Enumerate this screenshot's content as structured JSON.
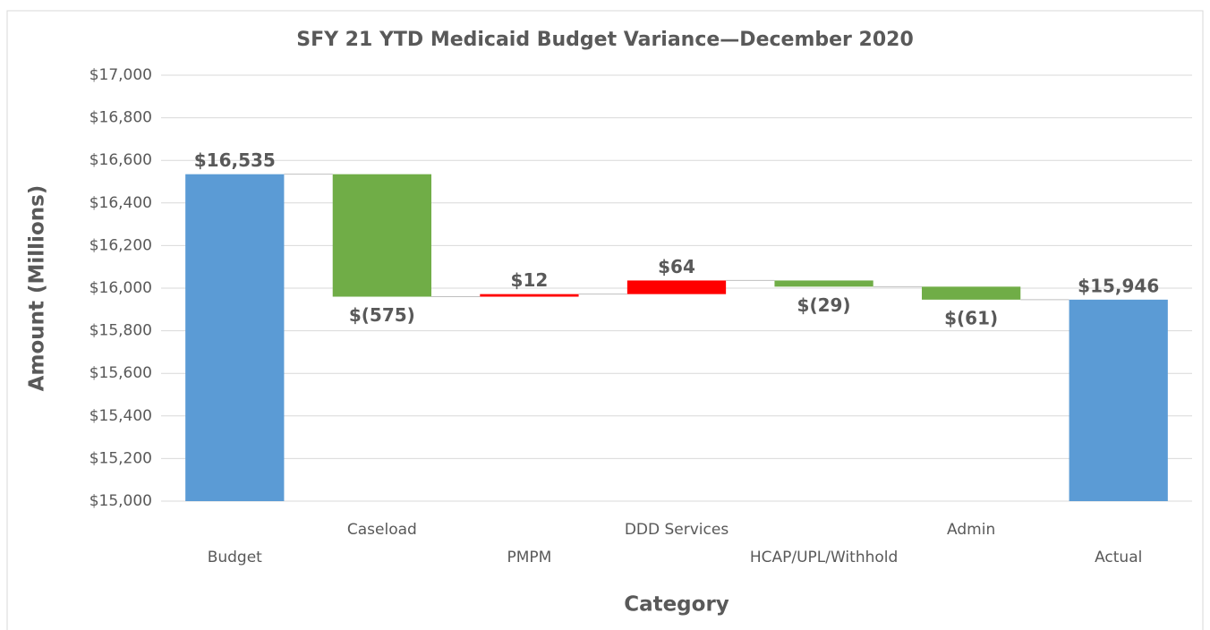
{
  "chart_data": {
    "type": "waterfall",
    "title": "SFY 21 YTD Medicaid Budget Variance—December 2020",
    "x_label": "Category",
    "y_label": "Amount (Millions)",
    "categories": [
      "Budget",
      "Caseload",
      "PMPM",
      "DDD Services",
      "HCAP/UPL/Withhold",
      "Admin",
      "Actual"
    ],
    "values": [
      16535,
      -575,
      12,
      64,
      -29,
      -61,
      15946
    ],
    "value_labels": [
      "$16,535",
      "$(575)",
      "$12",
      "$64",
      "$(29)",
      "$(61)",
      "$15,946"
    ],
    "colors": [
      "#5b9bd5",
      "#70ad47",
      "#ff0000",
      "#ff0000",
      "#70ad47",
      "#70ad47",
      "#5b9bd5"
    ],
    "ylim": [
      15000,
      17000
    ],
    "yticks": [
      {
        "value": 15000,
        "label": "$15,000"
      },
      {
        "value": 15200,
        "label": "$15,200"
      },
      {
        "value": 15400,
        "label": "$15,400"
      },
      {
        "value": 15600,
        "label": "$15,600"
      },
      {
        "value": 15800,
        "label": "$15,800"
      },
      {
        "value": 16000,
        "label": "$16,000"
      },
      {
        "value": 16200,
        "label": "$16,200"
      },
      {
        "value": 16400,
        "label": "$16,400"
      },
      {
        "value": 16600,
        "label": "$16,600"
      },
      {
        "value": 16800,
        "label": "$16,800"
      },
      {
        "value": 17000,
        "label": "$17,000"
      }
    ],
    "grid": true
  }
}
